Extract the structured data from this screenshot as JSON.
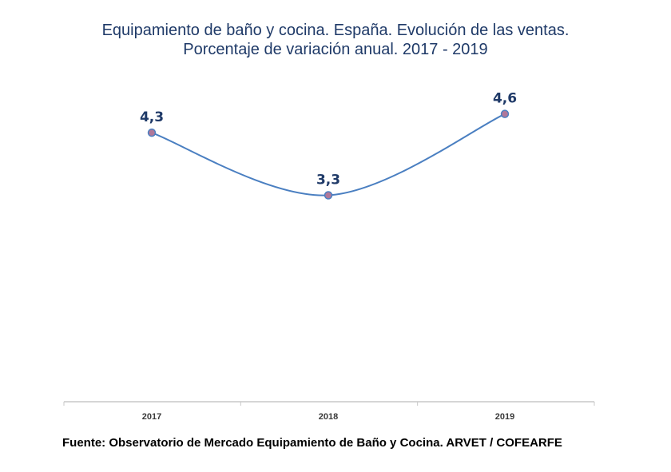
{
  "chart_data": {
    "type": "line",
    "title_line1": "Equipamiento de baño y cocina. España. Evolución de las ventas.",
    "title_line2": "Porcentaje de variación anual. 2017 - 2019",
    "categories": [
      "2017",
      "2018",
      "2019"
    ],
    "series": [
      {
        "values": [
          4.3,
          3.3,
          4.6
        ],
        "data_labels": [
          "4,3",
          "3,3",
          "4,6"
        ]
      }
    ],
    "xlabel": "",
    "ylabel": "",
    "ylim": [
      0,
      6
    ],
    "grid": false,
    "legend": "none",
    "line_style": "smooth",
    "colors": {
      "line": "#4a7fc1",
      "marker_fill": "#b0789a",
      "marker_stroke": "#4a7fc1",
      "data_label": "#1f3a68",
      "title": "#1f3a68",
      "axis": "#c8c8c8",
      "tick_label": "#3a3a3a"
    }
  },
  "source": "Fuente: Observatorio de Mercado Equipamiento de Baño y Cocina. ARVET / COFEARFE"
}
